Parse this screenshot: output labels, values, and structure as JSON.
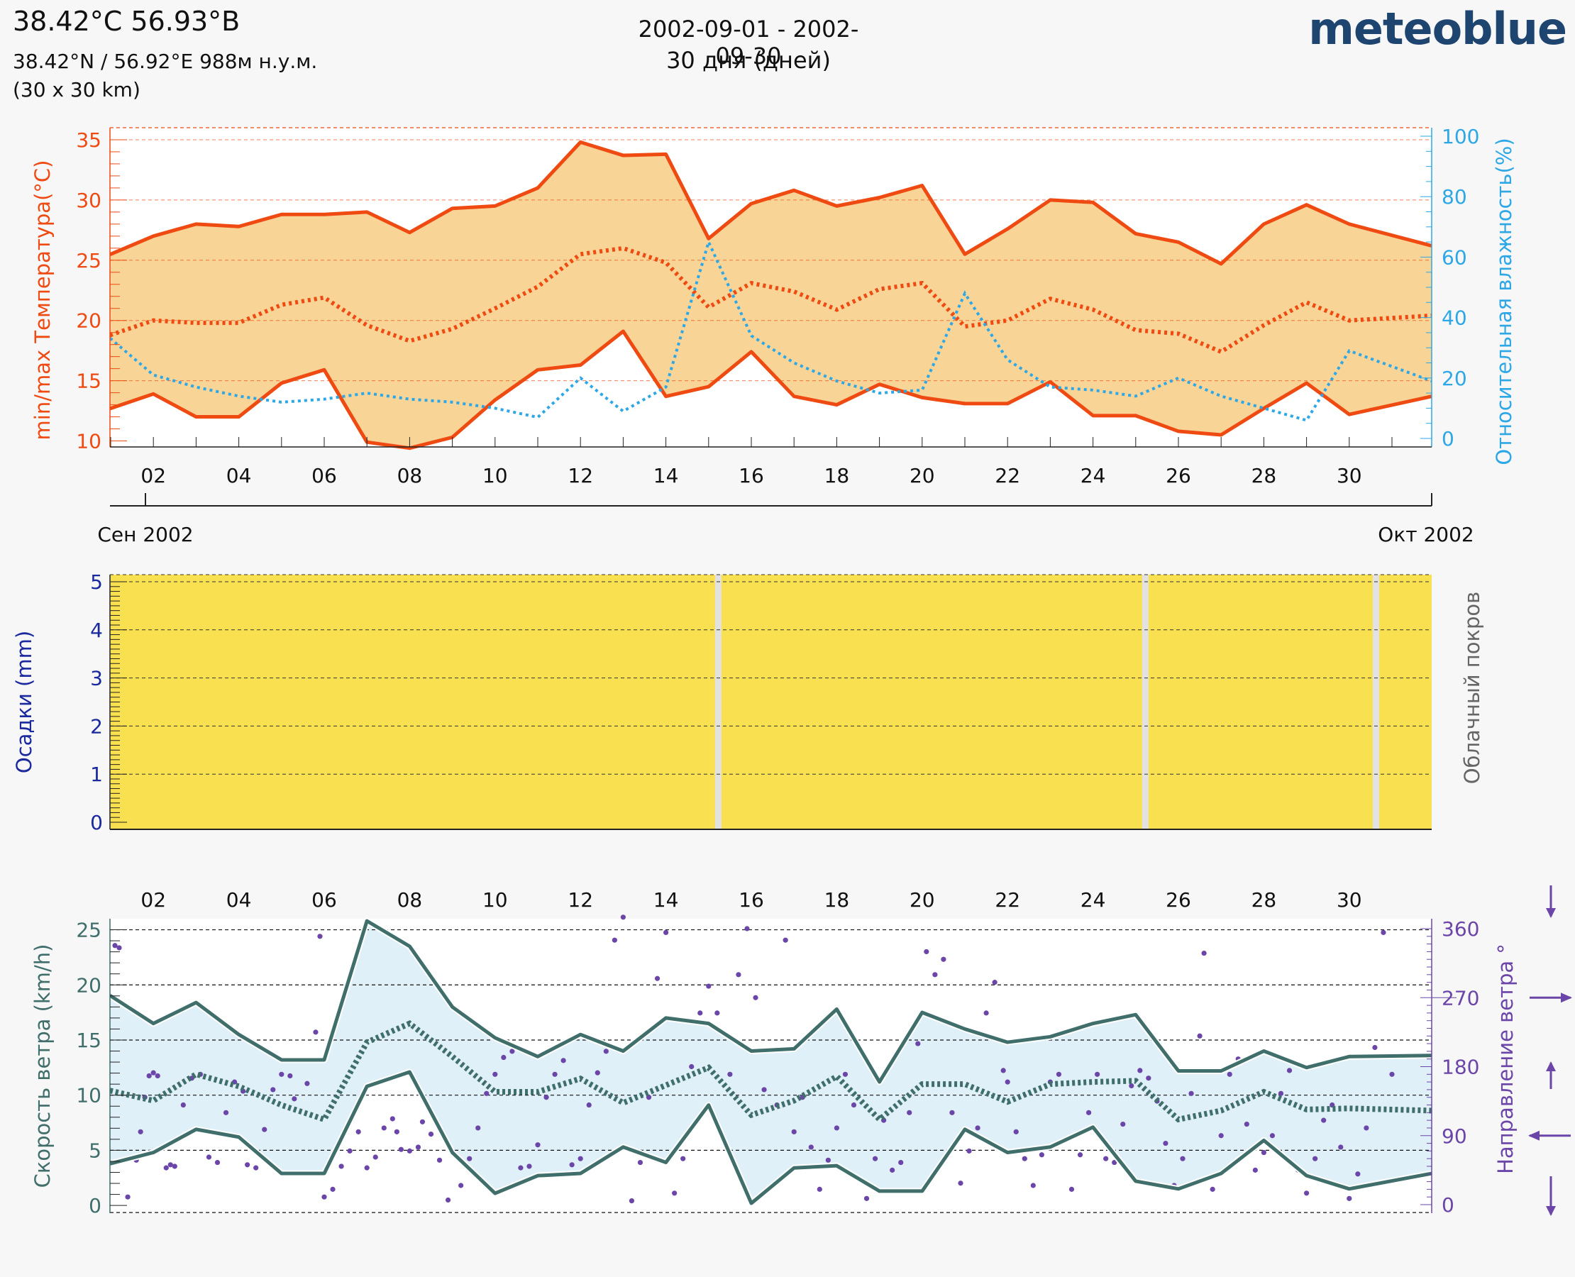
{
  "header": {
    "location": "38.42°C 56.93°B",
    "coords": "38.42°N / 56.92°E   988м н.у.м.",
    "grid": "(30 x 30 km)",
    "date_range": "2002-09-01 - 2002-09-30",
    "days": "30 дня (дней)",
    "brand": "meteoblue"
  },
  "colors": {
    "temp": "#ee4a12",
    "temp_fill": "#f8d596",
    "humidity": "#2da7e6",
    "precip_axis": "#1a2a9e",
    "cloud": "#f8e050",
    "cloud_gap": "#e2e2e2",
    "wind": "#3f6e6b",
    "wind_fill": "#dff0f8",
    "direction": "#6b45a8"
  },
  "x_ticks": [
    "02",
    "04",
    "06",
    "08",
    "10",
    "12",
    "14",
    "16",
    "18",
    "20",
    "22",
    "24",
    "26",
    "28",
    "30"
  ],
  "month_labels": {
    "start": "Сен 2002",
    "end": "Окт 2002"
  },
  "chart_data": [
    {
      "type": "line",
      "id": "temperature",
      "ylabel": "min/max Температура(°C)",
      "ylabel2": "Относительная влажность(%)",
      "ylim": [
        9.5,
        36
      ],
      "yticks": [
        10,
        15,
        20,
        25,
        30,
        35
      ],
      "y2lim": [
        0,
        100
      ],
      "y2ticks": [
        0,
        20,
        40,
        60,
        80,
        100
      ],
      "days": [
        1,
        2,
        3,
        4,
        5,
        6,
        7,
        8,
        9,
        10,
        11,
        12,
        13,
        14,
        15,
        16,
        17,
        18,
        19,
        20,
        21,
        22,
        23,
        24,
        25,
        26,
        27,
        28,
        29,
        30
      ],
      "series": [
        {
          "role": "max",
          "values": [
            25.5,
            27,
            28,
            27.8,
            28.8,
            28.8,
            29,
            27.3,
            29.3,
            29.5,
            31,
            34.8,
            33.7,
            33.8,
            26.8,
            29.7,
            30.8,
            29.5,
            30.2,
            31.2,
            25.5,
            27.6,
            30,
            29.8,
            27.2,
            26.5,
            24.7,
            28,
            29.6,
            28
          ]
        },
        {
          "role": "mean",
          "values": [
            18.8,
            20,
            19.8,
            19.8,
            21.3,
            21.9,
            19.6,
            18.3,
            19.3,
            21,
            22.8,
            25.5,
            26,
            24.8,
            21.1,
            23.1,
            22.4,
            20.9,
            22.6,
            23.1,
            19.5,
            20,
            21.8,
            20.9,
            19.2,
            18.9,
            17.4,
            19.6,
            21.5,
            20
          ]
        },
        {
          "role": "min",
          "values": [
            12.7,
            13.9,
            12,
            12,
            14.8,
            15.9,
            9.9,
            9.4,
            10.3,
            13.4,
            15.9,
            16.3,
            19.1,
            13.7,
            14.5,
            17.4,
            13.7,
            13,
            14.7,
            13.6,
            13.1,
            13.1,
            14.9,
            12.1,
            12.1,
            10.8,
            10.5,
            12.7,
            14.8,
            12.2
          ]
        },
        {
          "role": "humidity",
          "values": [
            33,
            21,
            17,
            14,
            12,
            13,
            15,
            13,
            12,
            10,
            7,
            20,
            9,
            17,
            65,
            34,
            25,
            19,
            15,
            16,
            48,
            26,
            17,
            16,
            14,
            20,
            14,
            10,
            6,
            29
          ]
        }
      ],
      "end_values": {
        "max": 26.2,
        "mean": 20.4,
        "min": 13.7,
        "humidity": 19
      }
    },
    {
      "type": "bar",
      "id": "precipitation",
      "ylabel": "Осадки (mm)",
      "ylabel2": "Облачный покров",
      "ylim": [
        0,
        5
      ],
      "yticks": [
        0,
        1,
        2,
        3,
        4,
        5
      ],
      "precip_values": [
        0,
        0,
        0,
        0,
        0,
        0,
        0,
        0,
        0,
        0,
        0,
        0,
        0,
        0,
        0,
        0,
        0,
        0,
        0,
        0,
        0,
        0,
        0,
        0,
        0,
        0,
        0,
        0,
        0,
        0
      ],
      "clear_days": [
        15.2,
        25.2,
        30.6
      ]
    },
    {
      "type": "line",
      "id": "wind",
      "ylabel": "Скорость ветра (km/h)",
      "ylabel2": "Направление ветра °",
      "ylim": [
        -0.7,
        26
      ],
      "yticks": [
        0,
        5,
        10,
        15,
        20,
        25
      ],
      "y2lim": [
        0,
        360
      ],
      "y2ticks": [
        0,
        90,
        180,
        270,
        360
      ],
      "days": [
        1,
        2,
        3,
        4,
        5,
        6,
        7,
        8,
        9,
        10,
        11,
        12,
        13,
        14,
        15,
        16,
        17,
        18,
        19,
        20,
        21,
        22,
        23,
        24,
        25,
        26,
        27,
        28,
        29,
        30
      ],
      "series": [
        {
          "role": "max",
          "values": [
            19,
            16.5,
            18.4,
            15.5,
            13.2,
            13.2,
            25.8,
            23.5,
            18,
            15.2,
            13.5,
            15.5,
            14,
            17,
            16.5,
            14,
            14.2,
            17.8,
            11.2,
            17.5,
            16,
            14.8,
            15.3,
            16.5,
            17.3,
            12.2,
            12.2,
            14,
            12.5,
            13.5
          ]
        },
        {
          "role": "mean",
          "values": [
            10.4,
            9.5,
            11.9,
            10.8,
            9.1,
            7.8,
            14.8,
            16.5,
            13.5,
            10.3,
            10.3,
            11.5,
            9.3,
            10.9,
            12.5,
            8.2,
            9.5,
            11.7,
            7.8,
            11,
            11,
            9.4,
            11,
            11.2,
            11.3,
            7.8,
            8.6,
            10.3,
            8.7,
            8.8
          ]
        },
        {
          "role": "min",
          "values": [
            3.8,
            4.8,
            6.9,
            6.2,
            2.9,
            2.9,
            10.8,
            12.1,
            4.8,
            1.1,
            2.7,
            2.9,
            5.3,
            3.9,
            9.1,
            0.2,
            3.4,
            3.6,
            1.3,
            1.3,
            6.9,
            4.8,
            5.3,
            7.1,
            2.2,
            1.5,
            2.9,
            5.9,
            2.7,
            1.5
          ]
        }
      ],
      "end_values": {
        "max": 13.6,
        "mean": 8.6,
        "min": 2.9
      },
      "direction_points": [
        [
          1.1,
          338
        ],
        [
          1.2,
          335
        ],
        [
          1.4,
          10
        ],
        [
          1.6,
          58
        ],
        [
          1.7,
          95
        ],
        [
          1.8,
          140
        ],
        [
          1.9,
          168
        ],
        [
          2.0,
          172
        ],
        [
          2.1,
          168
        ],
        [
          2.3,
          48
        ],
        [
          2.4,
          52
        ],
        [
          2.5,
          50
        ],
        [
          2.7,
          130
        ],
        [
          2.9,
          165
        ],
        [
          3.1,
          170
        ],
        [
          3.3,
          62
        ],
        [
          3.5,
          55
        ],
        [
          3.7,
          120
        ],
        [
          3.9,
          160
        ],
        [
          4.1,
          148
        ],
        [
          4.2,
          52
        ],
        [
          4.4,
          48
        ],
        [
          4.6,
          98
        ],
        [
          4.8,
          150
        ],
        [
          5.0,
          170
        ],
        [
          5.2,
          168
        ],
        [
          5.3,
          138
        ],
        [
          5.6,
          158
        ],
        [
          5.8,
          225
        ],
        [
          5.9,
          350
        ],
        [
          6.0,
          10
        ],
        [
          6.2,
          20
        ],
        [
          6.4,
          50
        ],
        [
          6.6,
          70
        ],
        [
          6.8,
          95
        ],
        [
          7.0,
          48
        ],
        [
          7.2,
          62
        ],
        [
          7.4,
          100
        ],
        [
          7.6,
          112
        ],
        [
          7.7,
          95
        ],
        [
          7.8,
          72
        ],
        [
          8.0,
          70
        ],
        [
          8.2,
          75
        ],
        [
          8.3,
          108
        ],
        [
          8.5,
          92
        ],
        [
          8.7,
          58
        ],
        [
          8.9,
          6
        ],
        [
          9.2,
          25
        ],
        [
          9.4,
          60
        ],
        [
          9.6,
          100
        ],
        [
          9.8,
          145
        ],
        [
          10.0,
          170
        ],
        [
          10.2,
          192
        ],
        [
          10.4,
          200
        ],
        [
          10.6,
          48
        ],
        [
          10.8,
          50
        ],
        [
          11.0,
          78
        ],
        [
          11.2,
          140
        ],
        [
          11.4,
          170
        ],
        [
          11.6,
          188
        ],
        [
          11.8,
          52
        ],
        [
          12.0,
          60
        ],
        [
          12.2,
          130
        ],
        [
          12.4,
          172
        ],
        [
          12.6,
          200
        ],
        [
          12.8,
          345
        ],
        [
          13.0,
          375
        ],
        [
          13.2,
          5
        ],
        [
          13.4,
          55
        ],
        [
          13.6,
          140
        ],
        [
          13.8,
          295
        ],
        [
          14.0,
          355
        ],
        [
          14.2,
          15
        ],
        [
          14.4,
          60
        ],
        [
          14.6,
          180
        ],
        [
          14.8,
          250
        ],
        [
          15.0,
          285
        ],
        [
          15.2,
          250
        ],
        [
          15.5,
          170
        ],
        [
          15.7,
          300
        ],
        [
          15.9,
          360
        ],
        [
          16.1,
          270
        ],
        [
          16.3,
          150
        ],
        [
          16.6,
          130
        ],
        [
          16.8,
          345
        ],
        [
          17.0,
          95
        ],
        [
          17.2,
          140
        ],
        [
          17.4,
          75
        ],
        [
          17.6,
          20
        ],
        [
          17.8,
          58
        ],
        [
          18.0,
          100
        ],
        [
          18.2,
          170
        ],
        [
          18.4,
          130
        ],
        [
          18.7,
          8
        ],
        [
          18.9,
          60
        ],
        [
          19.1,
          110
        ],
        [
          19.3,
          45
        ],
        [
          19.5,
          55
        ],
        [
          19.7,
          120
        ],
        [
          19.9,
          210
        ],
        [
          20.1,
          330
        ],
        [
          20.3,
          300
        ],
        [
          20.5,
          320
        ],
        [
          20.7,
          120
        ],
        [
          20.9,
          28
        ],
        [
          21.1,
          70
        ],
        [
          21.3,
          100
        ],
        [
          21.5,
          250
        ],
        [
          21.7,
          290
        ],
        [
          21.9,
          175
        ],
        [
          22.0,
          160
        ],
        [
          22.2,
          95
        ],
        [
          22.4,
          60
        ],
        [
          22.6,
          25
        ],
        [
          22.8,
          65
        ],
        [
          23.0,
          160
        ],
        [
          23.2,
          170
        ],
        [
          23.5,
          20
        ],
        [
          23.7,
          65
        ],
        [
          23.9,
          120
        ],
        [
          24.1,
          170
        ],
        [
          24.3,
          60
        ],
        [
          24.5,
          55
        ],
        [
          24.7,
          105
        ],
        [
          24.9,
          155
        ],
        [
          25.1,
          175
        ],
        [
          25.3,
          165
        ],
        [
          25.5,
          135
        ],
        [
          25.7,
          80
        ],
        [
          25.9,
          25
        ],
        [
          26.1,
          60
        ],
        [
          26.3,
          145
        ],
        [
          26.5,
          220
        ],
        [
          26.6,
          328
        ],
        [
          26.8,
          20
        ],
        [
          27.0,
          90
        ],
        [
          27.2,
          170
        ],
        [
          27.4,
          190
        ],
        [
          27.6,
          105
        ],
        [
          27.8,
          45
        ],
        [
          28.0,
          68
        ],
        [
          28.2,
          90
        ],
        [
          28.4,
          145
        ],
        [
          28.6,
          175
        ],
        [
          28.8,
          45
        ],
        [
          29.0,
          15
        ],
        [
          29.2,
          60
        ],
        [
          29.4,
          110
        ],
        [
          29.6,
          130
        ],
        [
          29.8,
          75
        ],
        [
          30.0,
          8
        ],
        [
          30.2,
          40
        ],
        [
          30.4,
          100
        ],
        [
          30.6,
          205
        ],
        [
          30.8,
          355
        ],
        [
          31.0,
          170
        ]
      ]
    }
  ]
}
